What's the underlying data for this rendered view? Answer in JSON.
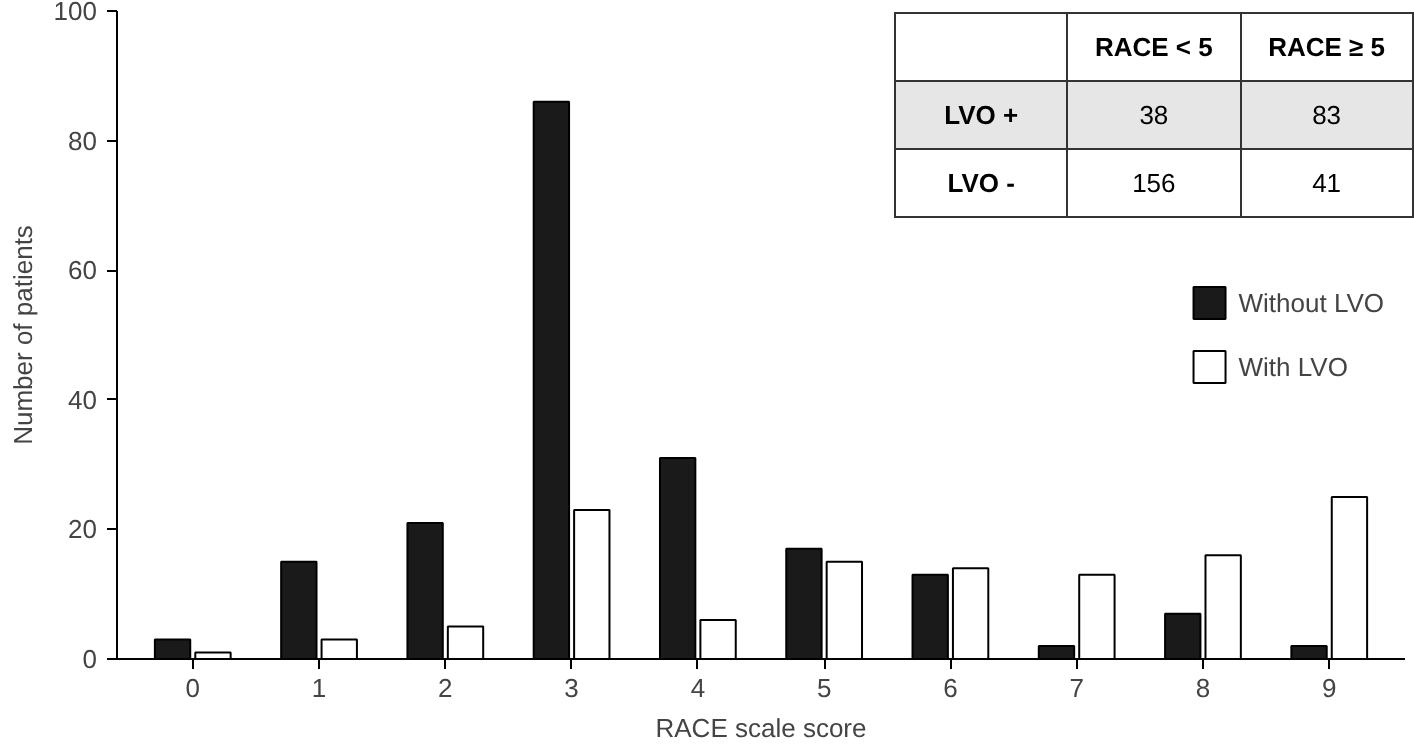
{
  "chart_data": {
    "type": "bar",
    "xlabel": "RACE scale score",
    "ylabel": "Number of patients",
    "categories": [
      "0",
      "1",
      "2",
      "3",
      "4",
      "5",
      "6",
      "7",
      "8",
      "9"
    ],
    "series": [
      {
        "name": "Without LVO",
        "color": "#1a1a1a",
        "values": [
          3,
          15,
          21,
          86,
          31,
          17,
          13,
          2,
          7,
          2
        ]
      },
      {
        "name": "With LVO",
        "color": "#ffffff",
        "values": [
          1,
          3,
          5,
          23,
          6,
          15,
          14,
          13,
          16,
          25
        ]
      }
    ],
    "ylim": [
      0,
      100
    ],
    "yticks": [
      0,
      20,
      40,
      60,
      80,
      100
    ],
    "grid": false,
    "legend": "right",
    "annotations": [
      "RACE < 5",
      "RACE ≥ 5",
      "LVO +",
      "38",
      "83",
      "LVO -",
      "156",
      "41"
    ]
  }
}
